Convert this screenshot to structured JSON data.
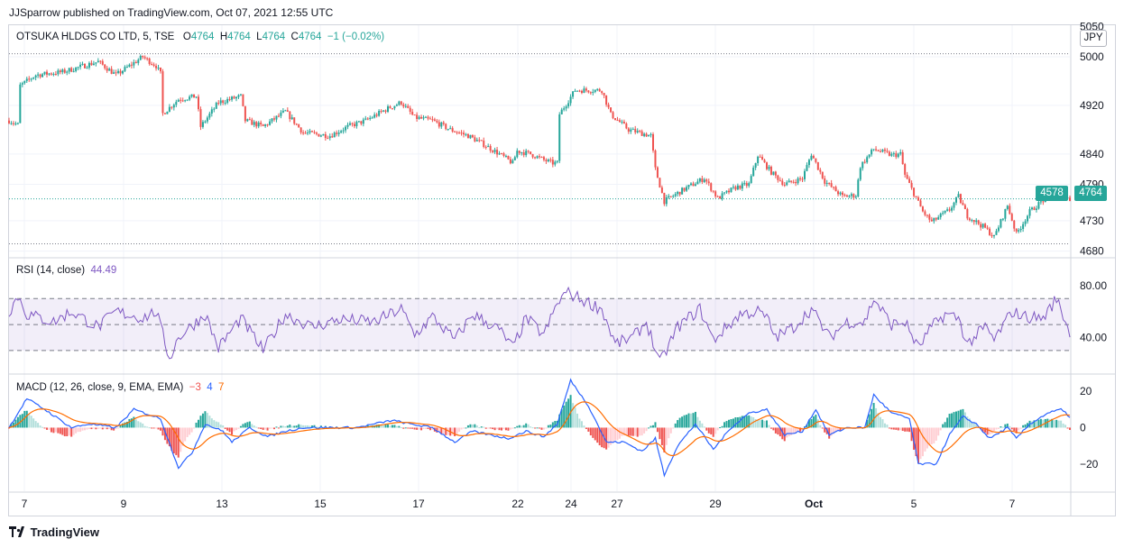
{
  "header": {
    "published": "JJSparrow published on TradingView.com, Oct 07, 2021 12:55 UTC"
  },
  "price_legend": {
    "symbol": "OTSUKA HLDGS CO LTD, 5, TSE",
    "o_label": "O",
    "o_value": "4764",
    "h_label": "H",
    "h_value": "4764",
    "l_label": "L",
    "l_value": "4764",
    "c_label": "C",
    "c_value": "4764",
    "change": "−1 (−0.02%)"
  },
  "currency_badge": "JPY",
  "price_tags": {
    "left": "4578",
    "right": "4764"
  },
  "rsi_legend": {
    "name": "RSI (14, close)",
    "value": "44.49"
  },
  "macd_legend": {
    "name": "MACD (12, 26, close, 9, EMA, EMA)",
    "hist": "−3",
    "macd": "4",
    "signal": "7"
  },
  "footer": {
    "brand": "TradingView"
  },
  "colors": {
    "up": "#26a69a",
    "down": "#ef5350",
    "rsi": "#7e57c2",
    "macd": "#2962ff",
    "signal": "#ff6d00",
    "grid": "#f0f3fa",
    "axis_text": "#131722"
  },
  "chart_data": [
    {
      "type": "candlestick",
      "title": "OTSUKA HLDGS CO LTD, 5, TSE",
      "x_ticks": [
        "7",
        "9",
        "13",
        "15",
        "17",
        "22",
        "24",
        "27",
        "29",
        "Oct",
        "5",
        "7"
      ],
      "y_ticks": [
        "5050",
        "5000",
        "4920",
        "4840",
        "4790",
        "4730",
        "4680"
      ],
      "ylim": [
        4672,
        5052
      ],
      "last_price": 4764,
      "dotted_levels": [
        5005,
        4766,
        4692
      ],
      "anchors": [
        [
          0,
          4895
        ],
        [
          2,
          4888
        ],
        [
          2,
          4950
        ],
        [
          6,
          4970
        ],
        [
          12,
          4975
        ],
        [
          20,
          4992
        ],
        [
          24,
          4970
        ],
        [
          30,
          5000
        ],
        [
          33,
          4985
        ],
        [
          34,
          4972
        ],
        [
          34,
          4903
        ],
        [
          38,
          4930
        ],
        [
          42,
          4935
        ],
        [
          43,
          4885
        ],
        [
          47,
          4925
        ],
        [
          52,
          4935
        ],
        [
          53,
          4895
        ],
        [
          57,
          4885
        ],
        [
          62,
          4910
        ],
        [
          66,
          4875
        ],
        [
          72,
          4870
        ],
        [
          76,
          4885
        ],
        [
          80,
          4895
        ],
        [
          85,
          4915
        ],
        [
          88,
          4925
        ],
        [
          91,
          4900
        ],
        [
          95,
          4895
        ],
        [
          99,
          4880
        ],
        [
          103,
          4870
        ],
        [
          106,
          4858
        ],
        [
          110,
          4840
        ],
        [
          113,
          4825
        ],
        [
          114,
          4845
        ],
        [
          117,
          4840
        ],
        [
          120,
          4830
        ],
        [
          122,
          4825
        ],
        [
          123,
          4825
        ],
        [
          123,
          4900
        ],
        [
          127,
          4945
        ],
        [
          133,
          4945
        ],
        [
          135,
          4905
        ],
        [
          139,
          4880
        ],
        [
          144,
          4870
        ],
        [
          145,
          4815
        ],
        [
          147,
          4762
        ],
        [
          151,
          4780
        ],
        [
          156,
          4800
        ],
        [
          159,
          4767
        ],
        [
          163,
          4785
        ],
        [
          166,
          4790
        ],
        [
          168,
          4838
        ],
        [
          171,
          4810
        ],
        [
          174,
          4790
        ],
        [
          178,
          4800
        ],
        [
          180,
          4840
        ],
        [
          183,
          4795
        ],
        [
          187,
          4770
        ],
        [
          190,
          4772
        ],
        [
          191,
          4820
        ],
        [
          194,
          4848
        ],
        [
          198,
          4838
        ],
        [
          200,
          4840
        ],
        [
          201,
          4805
        ],
        [
          205,
          4745
        ],
        [
          207,
          4728
        ],
        [
          211,
          4748
        ],
        [
          213,
          4770
        ],
        [
          215,
          4738
        ],
        [
          219,
          4718
        ],
        [
          221,
          4703
        ],
        [
          224,
          4755
        ],
        [
          226,
          4708
        ],
        [
          229,
          4745
        ],
        [
          233,
          4770
        ],
        [
          235,
          4777
        ],
        [
          238,
          4765
        ]
      ]
    },
    {
      "type": "line",
      "title": "RSI (14, close)",
      "y_ticks": [
        "80.00",
        "40.00"
      ],
      "ylim": [
        14,
        100
      ],
      "bands": [
        70,
        50,
        30
      ],
      "last_value": 44.49,
      "anchors": [
        [
          0,
          60
        ],
        [
          2,
          72
        ],
        [
          4,
          58
        ],
        [
          10,
          52
        ],
        [
          14,
          60
        ],
        [
          20,
          48
        ],
        [
          24,
          60
        ],
        [
          30,
          55
        ],
        [
          33,
          60
        ],
        [
          36,
          24
        ],
        [
          38,
          40
        ],
        [
          44,
          58
        ],
        [
          47,
          32
        ],
        [
          52,
          55
        ],
        [
          57,
          30
        ],
        [
          62,
          58
        ],
        [
          68,
          48
        ],
        [
          74,
          54
        ],
        [
          82,
          52
        ],
        [
          88,
          62
        ],
        [
          91,
          42
        ],
        [
          95,
          56
        ],
        [
          100,
          38
        ],
        [
          104,
          58
        ],
        [
          108,
          50
        ],
        [
          110,
          46
        ],
        [
          113,
          32
        ],
        [
          116,
          55
        ],
        [
          120,
          42
        ],
        [
          123,
          66
        ],
        [
          125,
          75
        ],
        [
          128,
          70
        ],
        [
          133,
          62
        ],
        [
          136,
          35
        ],
        [
          140,
          40
        ],
        [
          143,
          52
        ],
        [
          146,
          20
        ],
        [
          150,
          48
        ],
        [
          155,
          62
        ],
        [
          158,
          38
        ],
        [
          164,
          58
        ],
        [
          168,
          60
        ],
        [
          170,
          55
        ],
        [
          172,
          40
        ],
        [
          176,
          48
        ],
        [
          180,
          62
        ],
        [
          184,
          40
        ],
        [
          188,
          52
        ],
        [
          192,
          52
        ],
        [
          194,
          70
        ],
        [
          198,
          50
        ],
        [
          201,
          52
        ],
        [
          204,
          32
        ],
        [
          207,
          48
        ],
        [
          210,
          58
        ],
        [
          213,
          55
        ],
        [
          215,
          35
        ],
        [
          219,
          48
        ],
        [
          221,
          38
        ],
        [
          225,
          60
        ],
        [
          228,
          56
        ],
        [
          232,
          55
        ],
        [
          235,
          70
        ],
        [
          238,
          44
        ]
      ]
    },
    {
      "type": "macd",
      "title": "MACD (12, 26, close, 9, EMA, EMA)",
      "y_ticks": [
        "20",
        "0",
        "−20"
      ],
      "ylim": [
        -35,
        28
      ],
      "last_values": {
        "histogram": -3,
        "macd": 4,
        "signal": 7
      },
      "macd_anchors": [
        [
          0,
          0
        ],
        [
          4,
          16
        ],
        [
          8,
          10
        ],
        [
          14,
          0
        ],
        [
          18,
          2
        ],
        [
          24,
          0
        ],
        [
          28,
          10
        ],
        [
          34,
          5
        ],
        [
          38,
          -22
        ],
        [
          41,
          -14
        ],
        [
          44,
          2
        ],
        [
          48,
          -2
        ],
        [
          50,
          -8
        ],
        [
          54,
          0
        ],
        [
          58,
          -5
        ],
        [
          62,
          -2
        ],
        [
          66,
          0
        ],
        [
          72,
          0
        ],
        [
          78,
          0
        ],
        [
          82,
          2
        ],
        [
          86,
          4
        ],
        [
          90,
          2
        ],
        [
          95,
          0
        ],
        [
          100,
          -8
        ],
        [
          104,
          -2
        ],
        [
          108,
          -4
        ],
        [
          112,
          -6
        ],
        [
          116,
          -2
        ],
        [
          120,
          -5
        ],
        [
          123,
          2
        ],
        [
          126,
          26
        ],
        [
          130,
          12
        ],
        [
          134,
          -8
        ],
        [
          138,
          -8
        ],
        [
          142,
          -13
        ],
        [
          145,
          -6
        ],
        [
          147,
          -26
        ],
        [
          150,
          -10
        ],
        [
          154,
          2
        ],
        [
          158,
          -12
        ],
        [
          162,
          0
        ],
        [
          166,
          8
        ],
        [
          170,
          10
        ],
        [
          174,
          -4
        ],
        [
          178,
          -2
        ],
        [
          181,
          10
        ],
        [
          184,
          -4
        ],
        [
          188,
          0
        ],
        [
          192,
          0
        ],
        [
          194,
          18
        ],
        [
          198,
          8
        ],
        [
          202,
          5
        ],
        [
          204,
          -20
        ],
        [
          208,
          -20
        ],
        [
          211,
          -4
        ],
        [
          214,
          6
        ],
        [
          217,
          2
        ],
        [
          220,
          -6
        ],
        [
          224,
          0
        ],
        [
          226,
          -6
        ],
        [
          229,
          2
        ],
        [
          233,
          8
        ],
        [
          236,
          10
        ],
        [
          238,
          6
        ]
      ]
    }
  ]
}
